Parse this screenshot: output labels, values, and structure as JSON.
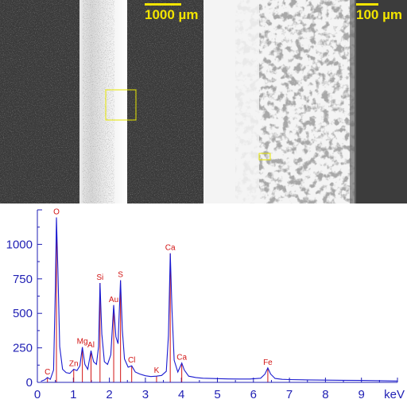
{
  "sem_left": {
    "scale_label": "1000 µm"
  },
  "sem_right": {
    "scale_label": "100 µm"
  },
  "chart_data": {
    "type": "line",
    "xlabel": "keV",
    "xlim": [
      0,
      10
    ],
    "ylim": [
      0,
      1250
    ],
    "xticks": [
      0,
      1,
      2,
      3,
      4,
      5,
      6,
      7,
      8,
      9
    ],
    "yticks": [
      0,
      250,
      500,
      750,
      1000
    ],
    "axis_color": "#1f1fb4",
    "line_color": "#1a1ad0",
    "marker_color": "#d21414",
    "peaks": [
      {
        "label": "C",
        "energy": 0.28,
        "height": 35
      },
      {
        "label": "O",
        "energy": 0.53,
        "height": 1195
      },
      {
        "label": "Zn",
        "energy": 1.01,
        "height": 95
      },
      {
        "label": "Mg",
        "energy": 1.25,
        "height": 255
      },
      {
        "label": "Al",
        "energy": 1.49,
        "height": 230
      },
      {
        "label": "Si",
        "energy": 1.74,
        "height": 720
      },
      {
        "label": "Au",
        "energy": 2.12,
        "height": 560
      },
      {
        "label": "S",
        "energy": 2.31,
        "height": 740
      },
      {
        "label": "Cl",
        "energy": 2.62,
        "height": 120
      },
      {
        "label": "K",
        "energy": 3.31,
        "height": 45
      },
      {
        "label": "Ca",
        "energy": 3.69,
        "height": 935
      },
      {
        "label": "Ca",
        "energy": 4.01,
        "height": 140
      },
      {
        "label": "Fe",
        "energy": 6.4,
        "height": 105
      }
    ],
    "x": [
      0.1,
      0.2,
      0.28,
      0.36,
      0.45,
      0.5,
      0.53,
      0.57,
      0.62,
      0.7,
      0.8,
      0.9,
      1.01,
      1.1,
      1.18,
      1.25,
      1.32,
      1.4,
      1.49,
      1.56,
      1.64,
      1.7,
      1.74,
      1.79,
      1.86,
      1.95,
      2.04,
      2.12,
      2.18,
      2.24,
      2.31,
      2.36,
      2.42,
      2.52,
      2.62,
      2.72,
      2.85,
      3.0,
      3.15,
      3.31,
      3.45,
      3.58,
      3.64,
      3.69,
      3.74,
      3.8,
      3.9,
      4.01,
      4.08,
      4.2,
      4.4,
      4.6,
      4.8,
      5.0,
      5.3,
      5.6,
      5.9,
      6.2,
      6.32,
      6.4,
      6.48,
      6.6,
      6.8,
      7.0,
      7.5,
      8.0,
      8.5,
      9.0,
      9.5,
      10.0
    ],
    "y": [
      8,
      18,
      35,
      22,
      90,
      700,
      1195,
      820,
      260,
      95,
      70,
      65,
      95,
      85,
      120,
      255,
      130,
      95,
      230,
      150,
      130,
      260,
      720,
      350,
      150,
      130,
      200,
      560,
      330,
      280,
      740,
      380,
      170,
      110,
      120,
      75,
      60,
      48,
      42,
      45,
      50,
      80,
      340,
      935,
      520,
      160,
      75,
      140,
      90,
      45,
      35,
      30,
      28,
      27,
      25,
      24,
      24,
      30,
      60,
      105,
      60,
      28,
      22,
      20,
      18,
      16,
      15,
      14,
      12,
      10
    ]
  }
}
